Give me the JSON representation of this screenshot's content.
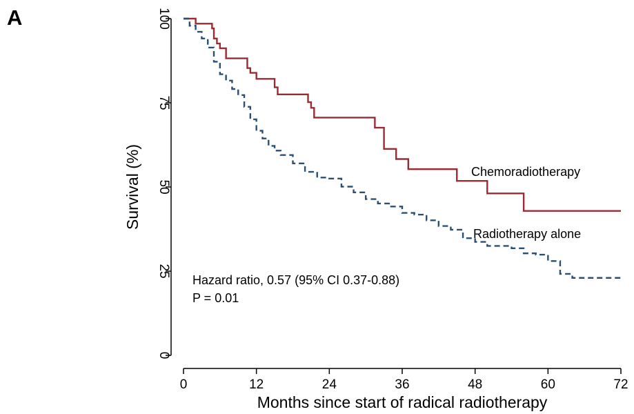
{
  "figure": {
    "panel_label": "A"
  },
  "chart_data": {
    "type": "line",
    "xlabel": "Months since start of radical radiotherapy",
    "ylabel": "Survival (%)",
    "xlim": [
      0,
      72
    ],
    "ylim": [
      0,
      100
    ],
    "xticks": [
      0,
      12,
      24,
      36,
      48,
      60,
      72
    ],
    "yticks": [
      0,
      25,
      50,
      75,
      100
    ],
    "grid": false,
    "legend": "none; series labelled directly on the plot",
    "annotations": [
      "Hazard ratio, 0.57 (95% CI 0.37-0.88)",
      "P = 0.01"
    ],
    "series": [
      {
        "name": "Chemoradiotherapy",
        "style": "solid step",
        "color": "#9b2b33",
        "x": [
          0,
          2,
          4.7,
          5,
          5.5,
          6,
          7,
          10.5,
          11,
          12,
          15,
          15.5,
          20.5,
          21,
          21.5,
          31.5,
          33,
          35,
          37,
          45,
          50,
          56,
          72
        ],
        "y": [
          100,
          98.5,
          97.1,
          94.1,
          92.6,
          91.2,
          88.2,
          85.3,
          83.9,
          82.1,
          79.6,
          77.5,
          75.2,
          73.5,
          70.6,
          67.6,
          61.3,
          58.3,
          55.3,
          51.8,
          48.1,
          42.9,
          42.9
        ]
      },
      {
        "name": "Radiotherapy alone",
        "style": "dashed step",
        "color": "#2a4f74",
        "x": [
          0,
          1,
          2,
          3,
          4,
          5,
          6,
          7,
          8,
          9,
          10,
          11,
          12,
          13,
          14,
          15,
          16,
          18,
          20,
          22,
          24,
          26,
          28,
          30,
          32,
          34,
          36,
          38,
          40,
          42,
          44,
          46,
          48,
          50,
          54,
          56,
          58,
          60,
          62,
          64,
          72
        ],
        "y": [
          100,
          97.9,
          96.1,
          94.1,
          91.4,
          87.2,
          83.5,
          81.6,
          79.1,
          77.3,
          73.8,
          70.1,
          66.7,
          64.4,
          62.2,
          60.8,
          59.5,
          57,
          54.5,
          52.8,
          52.5,
          50.1,
          48.4,
          46.4,
          45.1,
          44.2,
          42.3,
          41.8,
          40.1,
          38.4,
          37.3,
          34.8,
          33.7,
          32.5,
          31.8,
          30.3,
          29.9,
          28,
          24.2,
          23,
          23
        ]
      }
    ]
  }
}
